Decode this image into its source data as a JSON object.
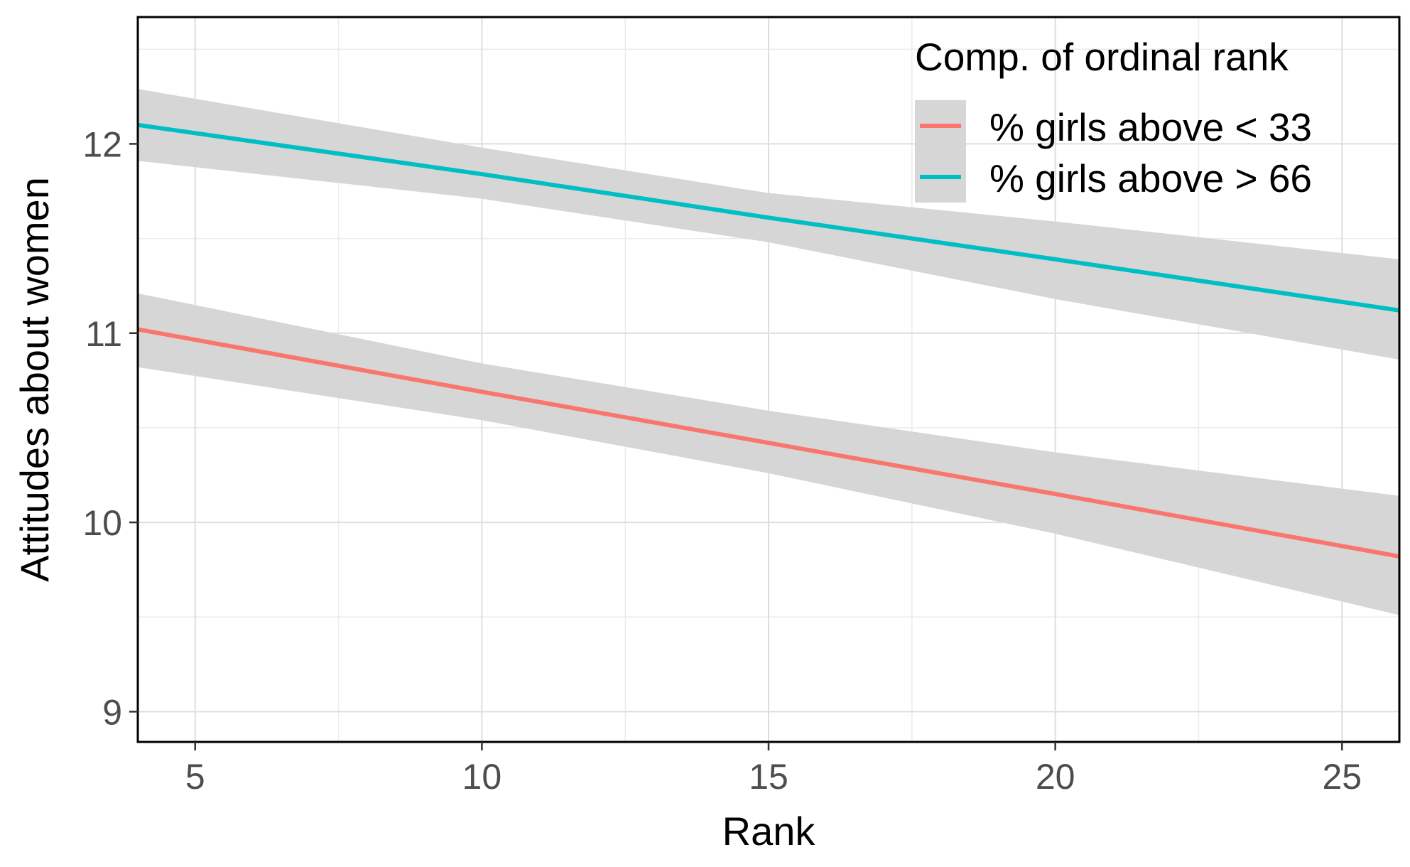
{
  "chart_data": {
    "type": "line",
    "xlabel": "Rank",
    "ylabel": "Attitudes about women",
    "xlim": [
      4,
      26
    ],
    "ylim": [
      8.84,
      12.67
    ],
    "x_ticks": [
      5,
      10,
      15,
      20,
      25
    ],
    "x_tick_labels": [
      "5",
      "10",
      "15",
      "20",
      "25"
    ],
    "y_ticks": [
      9,
      10,
      11,
      12
    ],
    "y_tick_labels": [
      "9",
      "10",
      "11",
      "12"
    ],
    "grid": true,
    "legend": {
      "title": "Comp. of ordinal rank",
      "position": "top-right"
    },
    "series": [
      {
        "name": "% girls above < 33",
        "color": "#F8766D",
        "x": [
          4,
          10,
          15,
          20,
          26
        ],
        "y": [
          11.02,
          10.69,
          10.42,
          10.15,
          9.82
        ],
        "ci_lower": [
          10.82,
          10.54,
          10.26,
          9.94,
          9.51
        ],
        "ci_upper": [
          11.21,
          10.84,
          10.59,
          10.37,
          10.14
        ]
      },
      {
        "name": "% girls above > 66",
        "color": "#00BFC4",
        "x": [
          4,
          10,
          15,
          20,
          26
        ],
        "y": [
          12.1,
          11.84,
          11.61,
          11.39,
          11.12
        ],
        "ci_lower": [
          11.91,
          11.71,
          11.48,
          11.18,
          10.86
        ],
        "ci_upper": [
          12.29,
          11.98,
          11.74,
          11.59,
          11.39
        ]
      }
    ],
    "ribbon_color": "#d6d6d6"
  }
}
